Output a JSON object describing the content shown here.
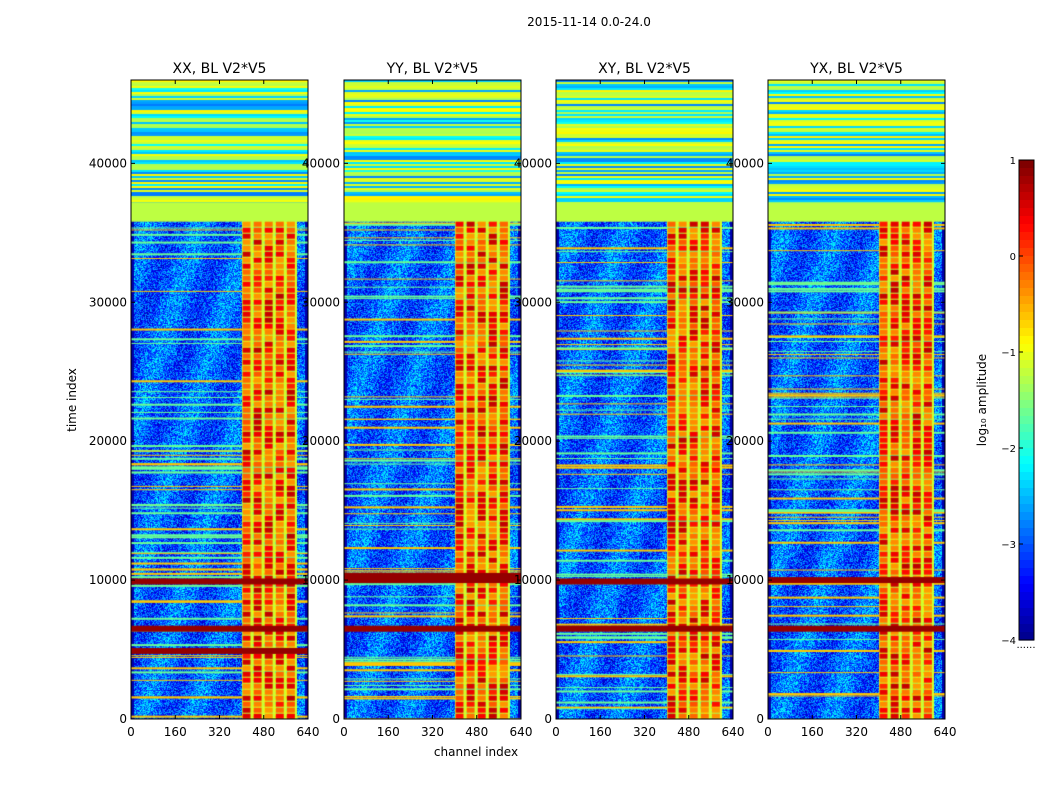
{
  "figure": {
    "suptitle": "2015-11-14 0.0-24.0",
    "xlabel": "channel index",
    "ylabel": "time index",
    "colorbar_label": "log₁₀ amplitude",
    "colorbar_extra": "......"
  },
  "chart_data": [
    {
      "type": "heatmap",
      "title": "XX, BL V2*V5",
      "xlim": [
        0,
        640
      ],
      "ylim": [
        0,
        46000
      ],
      "xticks": [
        0,
        160,
        320,
        480,
        640
      ],
      "yticks": [
        0,
        10000,
        20000,
        30000,
        40000
      ],
      "clim": [
        -4,
        1
      ],
      "colormap": "jet",
      "high_channel_band": [
        400,
        600
      ],
      "flagged_time_band": [
        35800,
        37200
      ],
      "strong_rfi_times": [
        4900,
        6500,
        9900
      ]
    },
    {
      "type": "heatmap",
      "title": "YY, BL V2*V5",
      "xlim": [
        0,
        640
      ],
      "ylim": [
        0,
        46000
      ],
      "xticks": [
        0,
        160,
        320,
        480,
        640
      ],
      "yticks": [
        0,
        10000,
        20000,
        30000,
        40000
      ],
      "clim": [
        -4,
        1
      ],
      "colormap": "jet",
      "high_channel_band": [
        400,
        600
      ],
      "flagged_time_band": [
        35800,
        37200
      ],
      "strong_rfi_times": [
        6500,
        10000,
        10300
      ]
    },
    {
      "type": "heatmap",
      "title": "XY, BL V2*V5",
      "xlim": [
        0,
        640
      ],
      "ylim": [
        0,
        46000
      ],
      "xticks": [
        0,
        160,
        320,
        480,
        640
      ],
      "yticks": [
        0,
        10000,
        20000,
        30000,
        40000
      ],
      "clim": [
        -4,
        1
      ],
      "colormap": "jet",
      "high_channel_band": [
        400,
        600
      ],
      "flagged_time_band": [
        35800,
        37200
      ],
      "strong_rfi_times": [
        6500,
        9900
      ]
    },
    {
      "type": "heatmap",
      "title": "YX, BL V2*V5",
      "xlim": [
        0,
        640
      ],
      "ylim": [
        0,
        46000
      ],
      "xticks": [
        0,
        160,
        320,
        480,
        640
      ],
      "yticks": [
        0,
        10000,
        20000,
        30000,
        40000
      ],
      "clim": [
        -4,
        1
      ],
      "colormap": "jet",
      "high_channel_band": [
        400,
        600
      ],
      "flagged_time_band": [
        35800,
        37200
      ],
      "strong_rfi_times": [
        6500,
        10000
      ]
    }
  ],
  "colorbar": {
    "ticks": [
      1,
      0,
      -1,
      -2,
      -3,
      -4
    ],
    "tick_labels": [
      "1",
      "0",
      "−1",
      "−2",
      "−3",
      "−4"
    ]
  },
  "colors": {
    "axis": "#000000",
    "background": "#ffffff"
  }
}
